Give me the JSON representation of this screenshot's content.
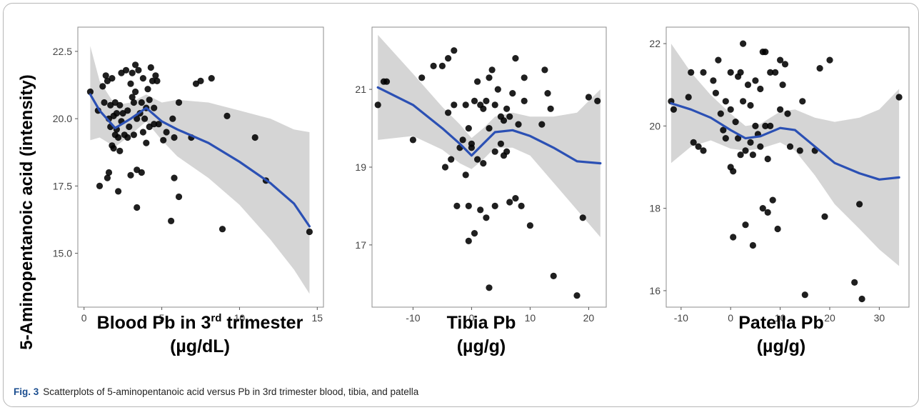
{
  "ylabel": "5-Aminopentanoic acid (intensity)",
  "caption": {
    "label": "Fig. 3",
    "text": "Scatterplots of 5-aminopentanoic acid versus Pb in 3rd trimester blood, tibia, and patella"
  },
  "colors": {
    "points": "#000000",
    "smooth": "#2b50b4",
    "band": "#d3d3d3",
    "panel_border": "#8c8c8c"
  },
  "chart_data": [
    {
      "type": "scatter",
      "xlabel_line1_pre": "Blood Pb in 3",
      "xlabel_line1_sup": "rd",
      "xlabel_line1_post": " trimester",
      "xlabel_line2": "(µg/dL)",
      "xlim": [
        -0.4,
        15.4
      ],
      "ylim": [
        13.0,
        23.4
      ],
      "xticks": [
        0,
        5,
        10,
        15
      ],
      "xtick_labels": [
        "0",
        "5",
        "10",
        "15"
      ],
      "yticks": [
        15.0,
        17.5,
        20.0,
        22.5
      ],
      "ytick_labels": [
        "15.0",
        "17.5",
        "20.0",
        "22.5"
      ],
      "grid": false,
      "points": [
        [
          0.4,
          21.0
        ],
        [
          0.9,
          20.3
        ],
        [
          1.0,
          17.5
        ],
        [
          1.2,
          21.2
        ],
        [
          1.3,
          20.6
        ],
        [
          1.4,
          21.6
        ],
        [
          1.5,
          17.8
        ],
        [
          1.5,
          21.4
        ],
        [
          1.6,
          20.0
        ],
        [
          1.6,
          18.0
        ],
        [
          1.7,
          19.7
        ],
        [
          1.7,
          20.5
        ],
        [
          1.8,
          19.0
        ],
        [
          1.8,
          21.5
        ],
        [
          1.9,
          20.1
        ],
        [
          1.9,
          18.9
        ],
        [
          2.0,
          20.6
        ],
        [
          2.0,
          19.4
        ],
        [
          2.1,
          20.2
        ],
        [
          2.1,
          19.6
        ],
        [
          2.2,
          19.3
        ],
        [
          2.2,
          17.3
        ],
        [
          2.3,
          20.5
        ],
        [
          2.3,
          18.8
        ],
        [
          2.4,
          21.7
        ],
        [
          2.4,
          19.9
        ],
        [
          2.5,
          20.2
        ],
        [
          2.6,
          19.4
        ],
        [
          2.7,
          21.8
        ],
        [
          2.8,
          20.3
        ],
        [
          2.8,
          19.3
        ],
        [
          2.9,
          19.7
        ],
        [
          3.0,
          21.3
        ],
        [
          3.0,
          17.9
        ],
        [
          3.1,
          21.7
        ],
        [
          3.1,
          20.8
        ],
        [
          3.2,
          20.6
        ],
        [
          3.2,
          19.4
        ],
        [
          3.3,
          22.0
        ],
        [
          3.3,
          21.0
        ],
        [
          3.4,
          20.0
        ],
        [
          3.4,
          18.1
        ],
        [
          3.4,
          16.7
        ],
        [
          3.5,
          21.8
        ],
        [
          3.6,
          20.2
        ],
        [
          3.7,
          20.6
        ],
        [
          3.7,
          18.0
        ],
        [
          3.8,
          21.5
        ],
        [
          3.8,
          19.5
        ],
        [
          3.9,
          20.0
        ],
        [
          4.0,
          20.4
        ],
        [
          4.0,
          19.1
        ],
        [
          4.1,
          21.1
        ],
        [
          4.2,
          20.7
        ],
        [
          4.2,
          19.7
        ],
        [
          4.3,
          21.9
        ],
        [
          4.4,
          21.4
        ],
        [
          4.5,
          20.4
        ],
        [
          4.5,
          19.8
        ],
        [
          4.6,
          21.6
        ],
        [
          4.7,
          21.4
        ],
        [
          4.8,
          19.8
        ],
        [
          5.1,
          19.2
        ],
        [
          5.3,
          19.5
        ],
        [
          5.6,
          16.2
        ],
        [
          5.7,
          20.0
        ],
        [
          5.8,
          19.3
        ],
        [
          5.8,
          17.8
        ],
        [
          6.1,
          20.6
        ],
        [
          6.1,
          17.1
        ],
        [
          6.9,
          19.3
        ],
        [
          7.2,
          21.3
        ],
        [
          7.5,
          21.4
        ],
        [
          8.2,
          21.5
        ],
        [
          8.9,
          15.9
        ],
        [
          9.2,
          20.1
        ],
        [
          11.0,
          19.3
        ],
        [
          11.7,
          17.7
        ],
        [
          14.5,
          15.8
        ]
      ],
      "smooth": [
        [
          0.4,
          20.9
        ],
        [
          1.0,
          20.3
        ],
        [
          2.0,
          19.65
        ],
        [
          3.0,
          20.0
        ],
        [
          4.0,
          20.4
        ],
        [
          5.0,
          19.9
        ],
        [
          6.0,
          19.6
        ],
        [
          8.0,
          19.1
        ],
        [
          10.0,
          18.4
        ],
        [
          12.0,
          17.6
        ],
        [
          13.5,
          16.85
        ],
        [
          14.5,
          16.0
        ]
      ],
      "band": [
        [
          0.4,
          22.7,
          19.2
        ],
        [
          1.0,
          21.4,
          19.3
        ],
        [
          2.0,
          20.5,
          18.95
        ],
        [
          3.0,
          20.6,
          19.4
        ],
        [
          4.0,
          20.9,
          19.9
        ],
        [
          5.0,
          20.6,
          19.2
        ],
        [
          6.0,
          20.7,
          18.6
        ],
        [
          8.0,
          20.6,
          17.8
        ],
        [
          10.0,
          20.3,
          16.8
        ],
        [
          12.0,
          20.0,
          15.5
        ],
        [
          13.5,
          19.6,
          14.4
        ],
        [
          14.5,
          19.5,
          13.5
        ]
      ]
    },
    {
      "type": "scatter",
      "xlabel_line1_pre": "Tibia Pb",
      "xlabel_line1_sup": "",
      "xlabel_line1_post": "",
      "xlabel_line2": "(µg/g)",
      "xlim": [
        -17,
        23
      ],
      "ylim": [
        15.4,
        22.6
      ],
      "xticks": [
        -10,
        0,
        10,
        20
      ],
      "xtick_labels": [
        "-10",
        "0",
        "10",
        "20"
      ],
      "yticks": [
        17,
        19,
        21
      ],
      "ytick_labels": [
        "17",
        "19",
        "21"
      ],
      "grid": false,
      "points": [
        [
          -16.0,
          20.6
        ],
        [
          -15.0,
          21.2
        ],
        [
          -14.5,
          21.2
        ],
        [
          -10.0,
          19.7
        ],
        [
          -8.5,
          21.3
        ],
        [
          -6.5,
          21.6
        ],
        [
          -5.0,
          21.6
        ],
        [
          -4.5,
          19.0
        ],
        [
          -4.0,
          21.8
        ],
        [
          -4.0,
          20.4
        ],
        [
          -3.5,
          19.2
        ],
        [
          -3.0,
          22.0
        ],
        [
          -3.0,
          20.6
        ],
        [
          -2.5,
          18.0
        ],
        [
          -2.0,
          19.5
        ],
        [
          -1.5,
          19.7
        ],
        [
          -1.0,
          20.6
        ],
        [
          -1.0,
          18.8
        ],
        [
          -0.5,
          20.0
        ],
        [
          -0.5,
          18.0
        ],
        [
          -0.5,
          17.1
        ],
        [
          0.0,
          19.6
        ],
        [
          0.0,
          19.5
        ],
        [
          0.5,
          20.7
        ],
        [
          0.5,
          17.3
        ],
        [
          1.0,
          21.2
        ],
        [
          1.0,
          19.2
        ],
        [
          1.5,
          20.6
        ],
        [
          1.5,
          17.9
        ],
        [
          2.0,
          20.5
        ],
        [
          2.0,
          19.1
        ],
        [
          2.5,
          20.7
        ],
        [
          2.5,
          17.7
        ],
        [
          3.0,
          21.3
        ],
        [
          3.0,
          20.0
        ],
        [
          3.0,
          15.9
        ],
        [
          3.5,
          21.5
        ],
        [
          4.0,
          20.6
        ],
        [
          4.0,
          19.4
        ],
        [
          4.0,
          18.0
        ],
        [
          4.5,
          21.0
        ],
        [
          5.0,
          20.3
        ],
        [
          5.0,
          19.6
        ],
        [
          5.5,
          20.2
        ],
        [
          5.5,
          19.3
        ],
        [
          6.0,
          20.5
        ],
        [
          6.0,
          19.4
        ],
        [
          6.5,
          20.3
        ],
        [
          6.5,
          18.1
        ],
        [
          7.0,
          20.9
        ],
        [
          7.5,
          21.8
        ],
        [
          7.5,
          18.2
        ],
        [
          8.0,
          20.1
        ],
        [
          8.5,
          18.0
        ],
        [
          9.0,
          20.7
        ],
        [
          9.0,
          21.3
        ],
        [
          10.0,
          17.5
        ],
        [
          12.0,
          20.1
        ],
        [
          12.5,
          21.5
        ],
        [
          13.0,
          20.9
        ],
        [
          13.5,
          20.5
        ],
        [
          14.0,
          16.2
        ],
        [
          18.0,
          15.7
        ],
        [
          19.0,
          17.7
        ],
        [
          20.0,
          20.8
        ],
        [
          21.5,
          20.7
        ]
      ],
      "smooth": [
        [
          -16.0,
          21.05
        ],
        [
          -10.0,
          20.6
        ],
        [
          -5.0,
          20.0
        ],
        [
          -2.0,
          19.6
        ],
        [
          0.0,
          19.3
        ],
        [
          2.0,
          19.6
        ],
        [
          4.0,
          19.9
        ],
        [
          7.0,
          19.95
        ],
        [
          10.0,
          19.8
        ],
        [
          14.0,
          19.5
        ],
        [
          18.0,
          19.15
        ],
        [
          22.0,
          19.1
        ]
      ],
      "band": [
        [
          -16.0,
          22.4,
          19.7
        ],
        [
          -10.0,
          21.4,
          19.8
        ],
        [
          -5.0,
          20.55,
          19.45
        ],
        [
          -2.0,
          20.1,
          19.1
        ],
        [
          0.0,
          19.75,
          18.95
        ],
        [
          2.0,
          20.0,
          19.2
        ],
        [
          4.0,
          20.3,
          19.5
        ],
        [
          7.0,
          20.4,
          19.5
        ],
        [
          10.0,
          20.3,
          19.3
        ],
        [
          14.0,
          20.3,
          18.6
        ],
        [
          18.0,
          20.4,
          17.9
        ],
        [
          22.0,
          21.0,
          17.2
        ]
      ]
    },
    {
      "type": "scatter",
      "xlabel_line1_pre": "Patella Pb",
      "xlabel_line1_sup": "",
      "xlabel_line1_post": "",
      "xlabel_line2": "(µg/g)",
      "xlim": [
        -13,
        36
      ],
      "ylim": [
        15.6,
        22.4
      ],
      "xticks": [
        -10,
        0,
        10,
        20,
        30
      ],
      "xtick_labels": [
        "-10",
        "0",
        "10",
        "20",
        "30"
      ],
      "yticks": [
        16,
        18,
        20,
        22
      ],
      "ytick_labels": [
        "16",
        "18",
        "20",
        "22"
      ],
      "grid": false,
      "points": [
        [
          -12.0,
          20.6
        ],
        [
          -11.5,
          20.4
        ],
        [
          -8.5,
          20.7
        ],
        [
          -8.0,
          21.3
        ],
        [
          -7.5,
          19.6
        ],
        [
          -6.5,
          19.5
        ],
        [
          -5.5,
          21.3
        ],
        [
          -5.5,
          19.4
        ],
        [
          -3.5,
          21.1
        ],
        [
          -3.0,
          20.8
        ],
        [
          -2.5,
          21.6
        ],
        [
          -2.0,
          20.3
        ],
        [
          -1.5,
          19.9
        ],
        [
          -1.0,
          20.6
        ],
        [
          -1.0,
          19.7
        ],
        [
          0.0,
          21.3
        ],
        [
          0.0,
          20.4
        ],
        [
          0.0,
          19.0
        ],
        [
          0.5,
          18.9
        ],
        [
          0.5,
          17.3
        ],
        [
          1.0,
          20.1
        ],
        [
          1.5,
          21.2
        ],
        [
          1.5,
          19.7
        ],
        [
          2.0,
          21.3
        ],
        [
          2.0,
          19.3
        ],
        [
          2.5,
          22.0
        ],
        [
          2.5,
          20.6
        ],
        [
          3.0,
          19.4
        ],
        [
          3.0,
          17.6
        ],
        [
          3.5,
          21.0
        ],
        [
          4.0,
          20.5
        ],
        [
          4.0,
          19.6
        ],
        [
          4.5,
          19.3
        ],
        [
          4.5,
          17.1
        ],
        [
          5.0,
          21.1
        ],
        [
          5.0,
          20.0
        ],
        [
          5.5,
          19.8
        ],
        [
          6.0,
          20.9
        ],
        [
          6.0,
          19.5
        ],
        [
          6.5,
          21.8
        ],
        [
          6.5,
          18.0
        ],
        [
          7.0,
          21.8
        ],
        [
          7.0,
          20.0
        ],
        [
          7.5,
          19.2
        ],
        [
          7.5,
          17.9
        ],
        [
          8.0,
          21.3
        ],
        [
          8.0,
          20.0
        ],
        [
          8.5,
          18.2
        ],
        [
          9.0,
          21.3
        ],
        [
          9.5,
          17.5
        ],
        [
          10.0,
          21.6
        ],
        [
          10.0,
          20.4
        ],
        [
          10.5,
          21.0
        ],
        [
          11.0,
          21.5
        ],
        [
          11.5,
          20.3
        ],
        [
          12.0,
          19.5
        ],
        [
          14.0,
          19.4
        ],
        [
          14.5,
          20.6
        ],
        [
          15.0,
          15.9
        ],
        [
          17.0,
          19.4
        ],
        [
          18.0,
          21.4
        ],
        [
          19.0,
          17.8
        ],
        [
          20.0,
          21.6
        ],
        [
          25.0,
          16.2
        ],
        [
          26.0,
          18.1
        ],
        [
          26.5,
          15.8
        ],
        [
          34.0,
          20.7
        ]
      ],
      "smooth": [
        [
          -12.0,
          20.55
        ],
        [
          -8.0,
          20.4
        ],
        [
          -4.0,
          20.2
        ],
        [
          0.0,
          19.9
        ],
        [
          3.0,
          19.7
        ],
        [
          6.0,
          19.75
        ],
        [
          10.0,
          19.95
        ],
        [
          13.0,
          19.9
        ],
        [
          17.0,
          19.5
        ],
        [
          21.0,
          19.1
        ],
        [
          26.0,
          18.85
        ],
        [
          30.0,
          18.7
        ],
        [
          34.0,
          18.75
        ]
      ],
      "band": [
        [
          -12.0,
          22.0,
          19.1
        ],
        [
          -8.0,
          21.3,
          19.5
        ],
        [
          -4.0,
          20.75,
          19.65
        ],
        [
          0.0,
          20.3,
          19.45
        ],
        [
          3.0,
          20.0,
          19.4
        ],
        [
          6.0,
          20.05,
          19.45
        ],
        [
          10.0,
          20.35,
          19.6
        ],
        [
          13.0,
          20.4,
          19.4
        ],
        [
          17.0,
          20.2,
          18.8
        ],
        [
          21.0,
          20.1,
          18.1
        ],
        [
          26.0,
          20.2,
          17.5
        ],
        [
          30.0,
          20.4,
          17.0
        ],
        [
          34.0,
          20.9,
          16.6
        ]
      ]
    }
  ]
}
